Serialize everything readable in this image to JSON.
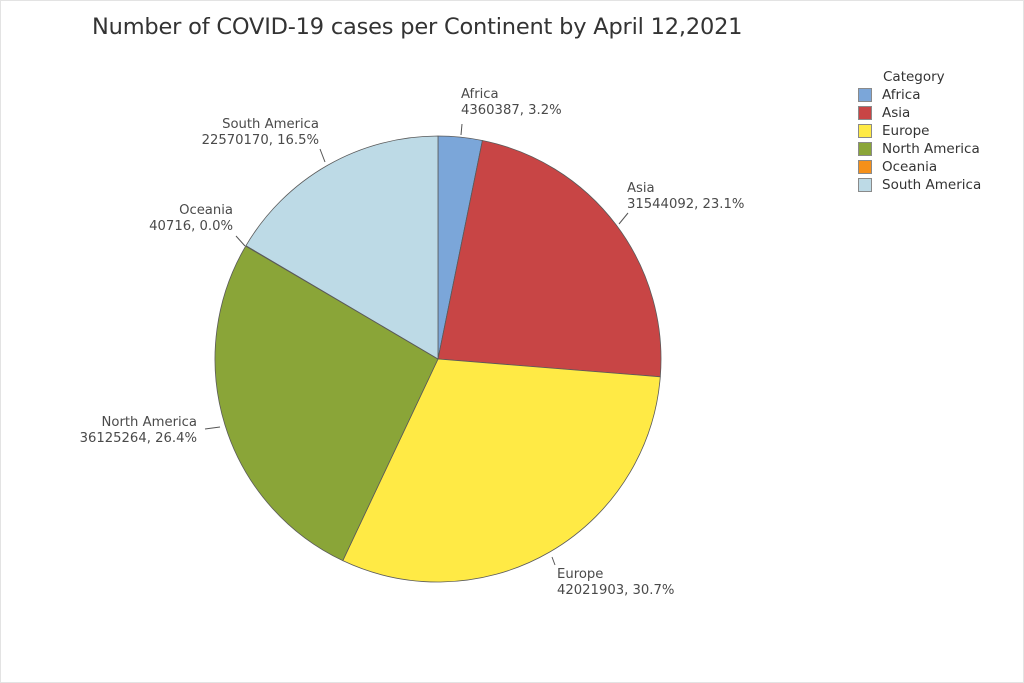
{
  "title": "Number of COVID-19 cases per Continent by April 12,2021",
  "legend": {
    "title": "Category",
    "items": [
      {
        "label": "Africa",
        "color": "#7ba6d9"
      },
      {
        "label": "Asia",
        "color": "#c84545"
      },
      {
        "label": "Europe",
        "color": "#ffea45"
      },
      {
        "label": "North America",
        "color": "#8aa538"
      },
      {
        "label": "Oceania",
        "color": "#f5901a"
      },
      {
        "label": "South America",
        "color": "#bddae6"
      }
    ]
  },
  "labels": [
    {
      "name": "Africa",
      "value_text": "4360387, 3.2%"
    },
    {
      "name": "Asia",
      "value_text": "31544092, 23.1%"
    },
    {
      "name": "Europe",
      "value_text": "42021903, 30.7%"
    },
    {
      "name": "North America",
      "value_text": "36125264, 26.4%"
    },
    {
      "name": "Oceania",
      "value_text": "40716, 0.0%"
    },
    {
      "name": "South America",
      "value_text": "22570170, 16.5%"
    }
  ],
  "chart_data": {
    "type": "pie",
    "title": "Number of COVID-19 cases per Continent by April 12,2021",
    "legend_title": "Category",
    "legend_position": "right",
    "categories": [
      "Africa",
      "Asia",
      "Europe",
      "North America",
      "Oceania",
      "South America"
    ],
    "values": [
      4360387,
      31544092,
      42021903,
      36125264,
      40716,
      22570170
    ],
    "percentages": [
      3.2,
      23.1,
      30.7,
      26.4,
      0.0,
      16.5
    ],
    "colors": [
      "#7ba6d9",
      "#c84545",
      "#ffea45",
      "#8aa538",
      "#f5901a",
      "#bddae6"
    ],
    "start_angle": "12 o'clock",
    "direction": "clockwise"
  }
}
